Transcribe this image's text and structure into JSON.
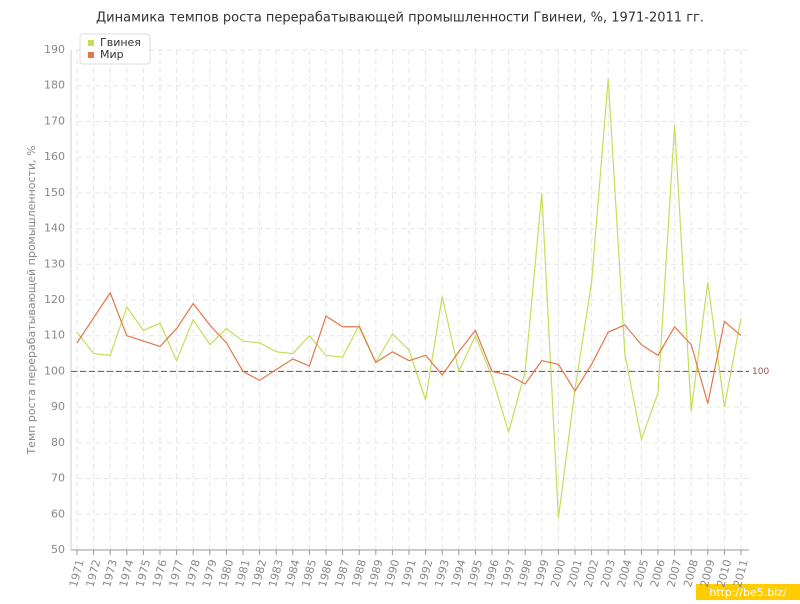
{
  "chart_data": {
    "type": "line",
    "title": "Динамика темпов роста перерабатывающей промышленности Гвинеи, %, 1971-2011 гг.",
    "y_label": "Темп роста перерабатывающей промышленности, %",
    "categories": [
      "1971",
      "1972",
      "1973",
      "1974",
      "1975",
      "1976",
      "1977",
      "1978",
      "1979",
      "1980",
      "1981",
      "1982",
      "1983",
      "1984",
      "1985",
      "1986",
      "1987",
      "1988",
      "1989",
      "1990",
      "1991",
      "1992",
      "1993",
      "1994",
      "1995",
      "1996",
      "1997",
      "1998",
      "1999",
      "2000",
      "2001",
      "2002",
      "2003",
      "2004",
      "2005",
      "2006",
      "2007",
      "2008",
      "2009",
      "2010",
      "2011"
    ],
    "series": [
      {
        "name": "Гвинея",
        "color": "#c3df5a",
        "values": [
          111,
          105,
          104.5,
          118,
          111.5,
          113.5,
          103,
          114.5,
          107.5,
          112,
          108.5,
          108,
          105.5,
          105,
          110,
          104.5,
          104,
          113,
          102.5,
          110.5,
          106,
          92,
          121,
          100,
          110,
          98.5,
          83,
          100,
          150,
          59,
          95,
          125,
          182,
          105,
          81,
          94,
          169,
          89,
          125,
          90,
          115
        ]
      },
      {
        "name": "Мир",
        "color": "#e2794c",
        "values": [
          108,
          115,
          122,
          110,
          108.5,
          107,
          112,
          119,
          113,
          108,
          100,
          97.5,
          100.5,
          103.5,
          101.5,
          115.5,
          112.5,
          112.5,
          102.5,
          105.5,
          103,
          104.5,
          99,
          105.5,
          111.5,
          100,
          99,
          96.5,
          103,
          102,
          94.5,
          102,
          111,
          113,
          107.5,
          104.5,
          112.5,
          107.5,
          91,
          114,
          110
        ]
      }
    ],
    "ylim": [
      50,
      190
    ],
    "yticks": [
      50,
      60,
      70,
      80,
      90,
      100,
      110,
      120,
      130,
      140,
      150,
      160,
      170,
      180,
      190
    ],
    "grid": true,
    "reference_line": 100,
    "reference_color": "#a05060",
    "legend": "top-left",
    "watermark": "http://be5.biz/"
  }
}
